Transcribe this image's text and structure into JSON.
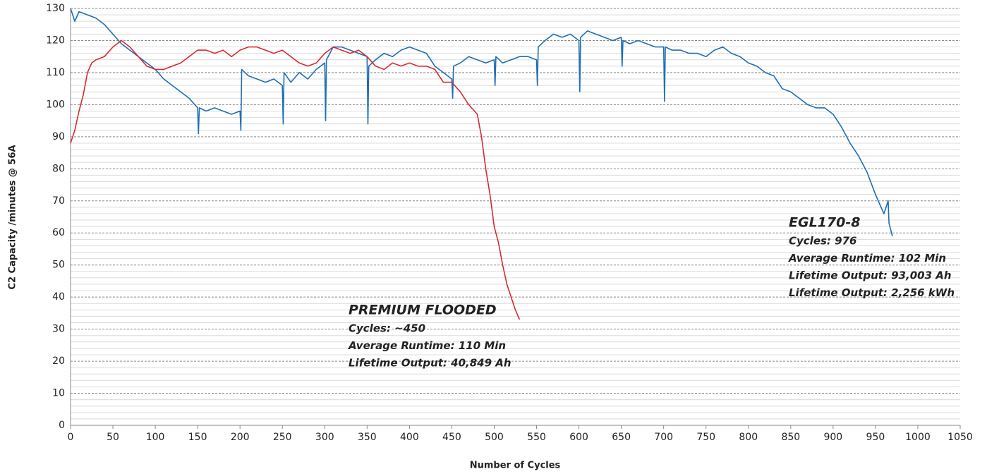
{
  "chart_data": {
    "type": "line",
    "xlabel": "Number of Cycles",
    "ylabel": "C2 Capacity  /minutes @ 56A",
    "xlim": [
      0,
      1050
    ],
    "xticks": [
      0,
      50,
      100,
      150,
      200,
      250,
      300,
      350,
      400,
      450,
      500,
      550,
      600,
      650,
      700,
      750,
      800,
      850,
      900,
      950,
      1000,
      1050
    ],
    "ylim": [
      0,
      130
    ],
    "yticks": [
      0,
      10,
      20,
      30,
      40,
      50,
      60,
      70,
      80,
      90,
      100,
      110,
      120,
      130
    ],
    "grid": true,
    "minor_grid": true,
    "series": [
      {
        "color": "#1f6eb5",
        "x": [
          0,
          5,
          10,
          20,
          30,
          40,
          50,
          60,
          70,
          80,
          90,
          100,
          110,
          120,
          130,
          140,
          150,
          151,
          152,
          160,
          170,
          180,
          190,
          200,
          201,
          202,
          210,
          220,
          230,
          240,
          250,
          251,
          252,
          260,
          270,
          280,
          290,
          300,
          301,
          302,
          310,
          320,
          330,
          340,
          350,
          351,
          352,
          360,
          370,
          380,
          390,
          400,
          410,
          420,
          430,
          440,
          450,
          451,
          452,
          460,
          470,
          480,
          490,
          500,
          501,
          502,
          510,
          520,
          530,
          540,
          550,
          551,
          552,
          560,
          570,
          580,
          590,
          600,
          601,
          602,
          610,
          620,
          630,
          640,
          650,
          651,
          652,
          660,
          670,
          680,
          690,
          700,
          701,
          702,
          710,
          720,
          730,
          740,
          750,
          760,
          770,
          780,
          790,
          800,
          810,
          820,
          830,
          840,
          850,
          860,
          870,
          880,
          890,
          900,
          910,
          920,
          930,
          940,
          950,
          960,
          965,
          966,
          970
        ],
        "values": [
          130,
          126,
          129,
          128,
          127,
          125,
          122,
          119,
          117,
          115,
          113,
          111,
          108,
          106,
          104,
          102,
          99,
          91,
          99,
          98,
          99,
          98,
          97,
          98,
          92,
          111,
          109,
          108,
          107,
          108,
          106,
          94,
          110,
          107,
          110,
          108,
          111,
          113,
          95,
          114,
          118,
          118,
          117,
          116,
          115,
          94,
          112,
          114,
          116,
          115,
          117,
          118,
          117,
          116,
          112,
          110,
          108,
          102,
          112,
          113,
          115,
          114,
          113,
          114,
          106,
          115,
          113,
          114,
          115,
          115,
          114,
          106,
          118,
          120,
          122,
          121,
          122,
          120,
          104,
          121,
          123,
          122,
          121,
          120,
          121,
          112,
          120,
          119,
          120,
          119,
          118,
          118,
          101,
          118,
          117,
          117,
          116,
          116,
          115,
          117,
          118,
          116,
          115,
          113,
          112,
          110,
          109,
          105,
          104,
          102,
          100,
          99,
          99,
          97,
          93,
          88,
          84,
          79,
          72,
          66,
          70,
          63,
          59
        ]
      },
      {
        "color": "#d62b32",
        "x": [
          0,
          5,
          10,
          15,
          20,
          25,
          30,
          40,
          50,
          60,
          70,
          80,
          90,
          100,
          110,
          120,
          130,
          140,
          150,
          160,
          170,
          180,
          190,
          200,
          210,
          220,
          230,
          240,
          250,
          260,
          270,
          280,
          290,
          300,
          310,
          320,
          330,
          340,
          350,
          360,
          370,
          380,
          390,
          400,
          410,
          420,
          430,
          440,
          450,
          460,
          470,
          480,
          485,
          490,
          495,
          500,
          505,
          510,
          515,
          520,
          525,
          530
        ],
        "values": [
          88,
          92,
          98,
          103,
          110,
          113,
          114,
          115,
          118,
          120,
          118,
          115,
          112,
          111,
          111,
          112,
          113,
          115,
          117,
          117,
          116,
          117,
          115,
          117,
          118,
          118,
          117,
          116,
          117,
          115,
          113,
          112,
          113,
          116,
          118,
          117,
          116,
          117,
          115,
          112,
          111,
          113,
          112,
          113,
          112,
          112,
          111,
          107,
          107,
          104,
          100,
          97,
          90,
          80,
          72,
          62,
          57,
          50,
          44,
          40,
          36,
          33
        ]
      }
    ],
    "annotations": [
      {
        "title": "EGL170-8",
        "lines": [
          "Cycles: 976",
          "Average Runtime: 102 Min",
          "Lifetime Output: 93,003 Ah",
          "Lifetime Output: 2,256 kWh"
        ]
      },
      {
        "title": "PREMIUM FLOODED",
        "lines": [
          "Cycles: ~450",
          "Average Runtime: 110 Min",
          "Lifetime Output: 40,849 Ah"
        ]
      }
    ]
  }
}
